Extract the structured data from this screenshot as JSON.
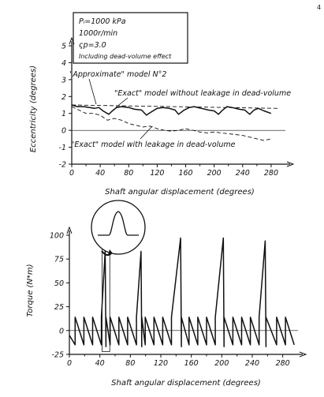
{
  "page_number": "4",
  "legend_box": {
    "lines": [
      "Pₗ=1000 kPa",
      "1000r/min",
      "ςp=3.0",
      "Including dead-volume effect"
    ]
  },
  "chart_data": [
    {
      "type": "line",
      "xlabel": "Shaft angular displacement (degrees)",
      "ylabel": "Eccentricity (degrees)",
      "xlim": [
        0,
        300
      ],
      "ylim": [
        -2,
        5
      ],
      "xticks": [
        0,
        40,
        80,
        120,
        160,
        200,
        240,
        280
      ],
      "yticks": [
        -2,
        -1,
        0,
        1,
        2,
        3,
        4,
        5
      ],
      "annotations": [
        "\"Approximate\" model N°2",
        "\"Exact\" model without leakage in dead-volume",
        "\"Exact\" model with leakage in dead-volume"
      ],
      "series": [
        {
          "name": "\"Approximate\" model N°2",
          "style": "dashed",
          "x": [
            0,
            290
          ],
          "y": [
            1.5,
            1.3
          ]
        },
        {
          "name": "\"Exact\" model without leakage in dead-volume",
          "style": "solid",
          "x": [
            0,
            8,
            17,
            25,
            32,
            38,
            44,
            52,
            57,
            63,
            70,
            80,
            88,
            98,
            105,
            112,
            120,
            128,
            137,
            145,
            150,
            158,
            165,
            172,
            182,
            192,
            200,
            206,
            212,
            218,
            225,
            235,
            243,
            250,
            256,
            262,
            270,
            280
          ],
          "y": [
            1.5,
            1.4,
            1.4,
            1.35,
            1.3,
            1.35,
            1.15,
            0.95,
            1.15,
            1.35,
            1.4,
            1.35,
            1.25,
            1.2,
            0.9,
            1.1,
            1.3,
            1.35,
            1.3,
            1.2,
            0.95,
            1.2,
            1.35,
            1.4,
            1.3,
            1.2,
            1.15,
            0.95,
            1.2,
            1.4,
            1.35,
            1.25,
            1.2,
            0.95,
            1.2,
            1.3,
            1.15,
            1.0
          ]
        },
        {
          "name": "\"Exact\" model with leakage in dead-volume",
          "style": "dashed",
          "x": [
            0,
            10,
            20,
            30,
            40,
            50,
            60,
            70,
            80,
            90,
            100,
            110,
            120,
            130,
            140,
            150,
            160,
            170,
            180,
            190,
            200,
            210,
            220,
            230,
            240,
            250,
            260,
            270,
            280
          ],
          "y": [
            1.4,
            1.2,
            1.0,
            1.0,
            0.9,
            0.6,
            0.7,
            0.6,
            0.4,
            0.3,
            0.2,
            0.25,
            0.1,
            0.0,
            -0.05,
            0.0,
            0.1,
            0.0,
            -0.1,
            -0.15,
            -0.1,
            -0.15,
            -0.2,
            -0.25,
            -0.3,
            -0.4,
            -0.5,
            -0.6,
            -0.5
          ]
        }
      ]
    },
    {
      "type": "line",
      "xlabel": "Shaft angular displacement (degrees)",
      "ylabel": "Torque (N*m)",
      "xlim": [
        0,
        300
      ],
      "ylim": [
        -25,
        100
      ],
      "xticks": [
        0,
        40,
        80,
        120,
        160,
        200,
        240,
        280
      ],
      "yticks": [
        -25,
        0,
        25,
        50,
        75,
        100
      ],
      "series": [
        {
          "name": "",
          "style": "solid",
          "x": [
            0,
            7.5,
            7.5,
            19,
            19,
            30.5,
            30.5,
            42,
            42,
            47,
            48,
            48,
            53.5,
            53.5,
            65,
            65,
            76.5,
            76.5,
            88,
            88,
            94,
            95,
            95,
            99.5,
            99.5,
            111,
            111,
            122.5,
            122.5,
            134,
            134,
            146,
            147,
            147,
            157,
            157,
            168.5,
            168.5,
            180,
            180,
            191.5,
            191.5,
            202,
            203,
            203,
            214.5,
            214.5,
            226,
            226,
            237.5,
            237.5,
            249,
            249,
            257,
            258,
            258,
            272,
            272,
            283.5,
            283.5,
            295
          ],
          "y": [
            -5,
            -15,
            14,
            -15,
            14,
            -15,
            14,
            -15,
            14,
            83,
            -17,
            14,
            -15,
            14,
            -15,
            14,
            -15,
            14,
            -15,
            14,
            83,
            -17,
            14,
            -15,
            14,
            -15,
            14,
            -15,
            14,
            -15,
            14,
            97,
            -17,
            14,
            -15,
            14,
            -15,
            14,
            -15,
            14,
            -15,
            14,
            97,
            -17,
            14,
            -15,
            14,
            -15,
            14,
            -15,
            14,
            -15,
            14,
            94,
            -17,
            14,
            -15,
            14,
            -15,
            14,
            -15
          ]
        }
      ],
      "highlight_window_x": [
        43,
        53
      ]
    }
  ]
}
